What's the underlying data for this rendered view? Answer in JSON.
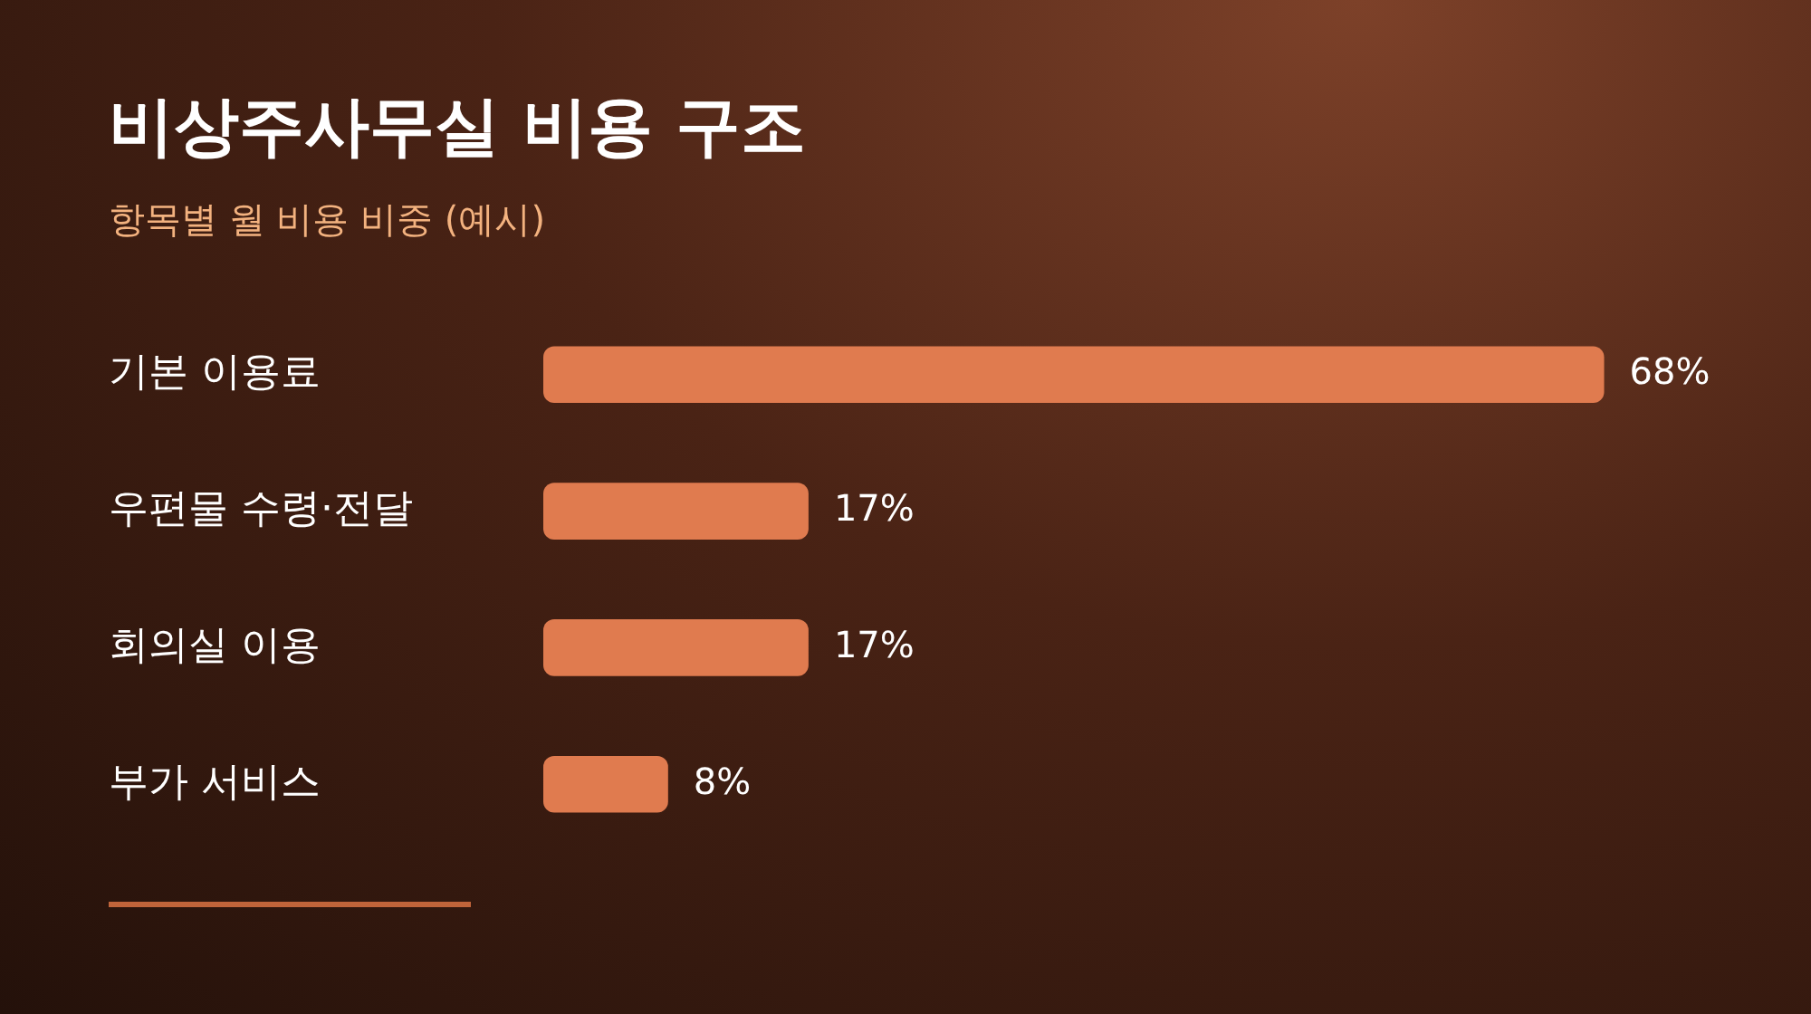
{
  "chart_data": {
    "type": "bar",
    "orientation": "horizontal",
    "tick_labels": "y",
    "title": "비상주사무실 비용 구조",
    "subtitle": "항목별 월 비용 비중 (예시)",
    "categories": [
      "기본 이용료",
      "우편물 수령·전달",
      "회의실 이용",
      "부가 서비스"
    ],
    "values": [
      68,
      17,
      17,
      8
    ],
    "value_labels": [
      "68%",
      "17%",
      "17%",
      "8%"
    ],
    "color": "#e07b4f",
    "legend": false
  }
}
